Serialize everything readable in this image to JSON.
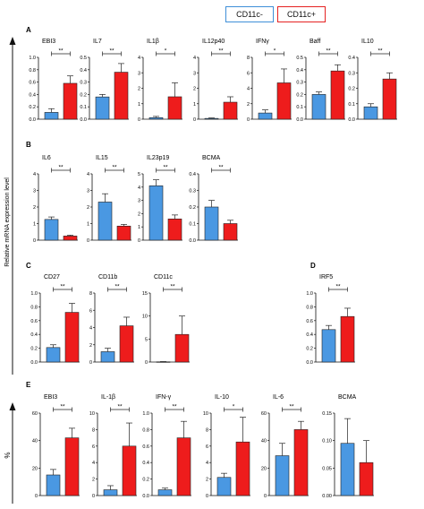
{
  "legend": [
    {
      "label": "CD11c-",
      "color": "#3f8fd8"
    },
    {
      "label": "CD11c+",
      "color": "#e52222"
    }
  ],
  "ylabels": [
    "Relative mRNA expression level",
    "%"
  ],
  "colors": {
    "neg": "#4a98e2",
    "pos": "#ee1c1c",
    "axis": "#111111"
  },
  "chart_data": [
    {
      "panel": "A",
      "type": "bar",
      "title": "EBI3",
      "ylim": [
        0,
        1
      ],
      "yticks": [
        "0.0",
        "0.2",
        "0.4",
        "0.6",
        "0.8",
        "1.0"
      ],
      "values": [
        0.11,
        0.58
      ],
      "errors": [
        0.06,
        0.12
      ],
      "sig": "**"
    },
    {
      "panel": "A",
      "type": "bar",
      "title": "IL7",
      "ylim": [
        0,
        0.5
      ],
      "yticks": [
        "0.0",
        "0.1",
        "0.2",
        "0.3",
        "0.4",
        "0.5"
      ],
      "values": [
        0.18,
        0.38
      ],
      "errors": [
        0.02,
        0.07
      ],
      "sig": "**"
    },
    {
      "panel": "A",
      "type": "bar",
      "title": "IL1β",
      "ylim": [
        0,
        4
      ],
      "yticks": [
        "0",
        "1",
        "2",
        "3",
        "4"
      ],
      "values": [
        0.1,
        1.45
      ],
      "errors": [
        0.08,
        0.9
      ],
      "sig": "*"
    },
    {
      "panel": "A",
      "type": "bar",
      "title": "IL12p40",
      "ylim": [
        0,
        4
      ],
      "yticks": [
        "0",
        "1",
        "2",
        "3",
        "4"
      ],
      "values": [
        0.05,
        1.1
      ],
      "errors": [
        0.03,
        0.35
      ],
      "sig": "**"
    },
    {
      "panel": "A",
      "type": "bar",
      "title": "IFNγ",
      "ylim": [
        0,
        8
      ],
      "yticks": [
        "0",
        "2",
        "4",
        "6",
        "8"
      ],
      "values": [
        0.8,
        4.7
      ],
      "errors": [
        0.4,
        1.8
      ],
      "sig": "*"
    },
    {
      "panel": "A",
      "type": "bar",
      "title": "Baff",
      "ylim": [
        0,
        0.5
      ],
      "yticks": [
        "0.0",
        "0.1",
        "0.2",
        "0.3",
        "0.4",
        "0.5"
      ],
      "values": [
        0.2,
        0.39
      ],
      "errors": [
        0.02,
        0.05
      ],
      "sig": "**"
    },
    {
      "panel": "A",
      "type": "bar",
      "title": "IL10",
      "ylim": [
        0,
        0.4
      ],
      "yticks": [
        "0.0",
        "0.1",
        "0.2",
        "0.3",
        "0.4"
      ],
      "values": [
        0.08,
        0.26
      ],
      "errors": [
        0.02,
        0.04
      ],
      "sig": "**"
    },
    {
      "panel": "B",
      "type": "bar",
      "title": "IL6",
      "ylim": [
        0,
        4
      ],
      "yticks": [
        "0",
        "1",
        "2",
        "3",
        "4"
      ],
      "values": [
        1.25,
        0.25
      ],
      "errors": [
        0.15,
        0.05
      ],
      "sig": "**"
    },
    {
      "panel": "B",
      "type": "bar",
      "title": "IL15",
      "ylim": [
        0,
        4
      ],
      "yticks": [
        "0",
        "1",
        "2",
        "3",
        "4"
      ],
      "values": [
        2.3,
        0.85
      ],
      "errors": [
        0.5,
        0.1
      ],
      "sig": "**"
    },
    {
      "panel": "B",
      "type": "bar",
      "title": "IL23p19",
      "ylim": [
        0,
        5
      ],
      "yticks": [
        "0",
        "1",
        "2",
        "3",
        "4",
        "5"
      ],
      "values": [
        4.1,
        1.6
      ],
      "errors": [
        0.45,
        0.3
      ],
      "sig": "**"
    },
    {
      "panel": "B",
      "type": "bar",
      "title": "BCMA",
      "ylim": [
        0,
        0.4
      ],
      "yticks": [
        "0.0",
        "0.1",
        "0.2",
        "0.3",
        "0.4"
      ],
      "values": [
        0.2,
        0.1
      ],
      "errors": [
        0.04,
        0.02
      ],
      "sig": "**"
    },
    {
      "panel": "C",
      "type": "bar",
      "title": "CD27",
      "ylim": [
        0,
        1
      ],
      "yticks": [
        "0.0",
        "0.2",
        "0.4",
        "0.6",
        "0.8",
        "1.0"
      ],
      "values": [
        0.21,
        0.72
      ],
      "errors": [
        0.04,
        0.13
      ],
      "sig": "**"
    },
    {
      "panel": "C",
      "type": "bar",
      "title": "CD11b",
      "ylim": [
        0,
        8
      ],
      "yticks": [
        "0",
        "2",
        "4",
        "6",
        "8"
      ],
      "values": [
        1.2,
        4.2
      ],
      "errors": [
        0.4,
        1.0
      ],
      "sig": "**"
    },
    {
      "panel": "C",
      "type": "bar",
      "title": "CD11c",
      "ylim": [
        0,
        15
      ],
      "yticks": [
        "0",
        "5",
        "10",
        "15"
      ],
      "values": [
        0.05,
        6.0
      ],
      "errors": [
        0.05,
        4.0
      ],
      "sig": "**"
    },
    {
      "panel": "D",
      "type": "bar",
      "title": "IRF5",
      "ylim": [
        0,
        1
      ],
      "yticks": [
        "0.0",
        "0.2",
        "0.4",
        "0.6",
        "0.8",
        "1.0"
      ],
      "values": [
        0.47,
        0.66
      ],
      "errors": [
        0.06,
        0.12
      ],
      "sig": "**"
    },
    {
      "panel": "E",
      "type": "bar",
      "title": "EBI3",
      "ylim": [
        0,
        60
      ],
      "yticks": [
        "0",
        "20",
        "40",
        "60"
      ],
      "values": [
        15,
        42
      ],
      "errors": [
        4,
        7
      ],
      "sig": "**"
    },
    {
      "panel": "E",
      "type": "bar",
      "title": "IL-1β",
      "ylim": [
        0,
        10
      ],
      "yticks": [
        "0",
        "2",
        "4",
        "6",
        "8",
        "10"
      ],
      "values": [
        0.7,
        6.0
      ],
      "errors": [
        0.5,
        2.8
      ],
      "sig": "**"
    },
    {
      "panel": "E",
      "type": "bar",
      "title": "IFN-γ",
      "ylim": [
        0,
        1
      ],
      "yticks": [
        "0.0",
        "0.2",
        "0.4",
        "0.6",
        "0.8",
        "1.0"
      ],
      "values": [
        0.07,
        0.7
      ],
      "errors": [
        0.02,
        0.2
      ],
      "sig": "**"
    },
    {
      "panel": "E",
      "type": "bar",
      "title": "IL-10",
      "ylim": [
        0,
        10
      ],
      "yticks": [
        "0",
        "2",
        "4",
        "6",
        "8",
        "10"
      ],
      "values": [
        2.2,
        6.5
      ],
      "errors": [
        0.5,
        3.0
      ],
      "sig": "*"
    },
    {
      "panel": "E",
      "type": "bar",
      "title": "IL-6",
      "ylim": [
        0,
        60
      ],
      "yticks": [
        "0",
        "20",
        "40",
        "60"
      ],
      "values": [
        29,
        48
      ],
      "errors": [
        9,
        6
      ],
      "sig": "**"
    },
    {
      "panel": "E",
      "type": "bar",
      "title": "BCMA",
      "ylim": [
        0,
        0.15
      ],
      "yticks": [
        "0.00",
        "0.05",
        "0.10",
        "0.15"
      ],
      "values": [
        0.095,
        0.06
      ],
      "errors": [
        0.045,
        0.04
      ],
      "sig": ""
    }
  ]
}
